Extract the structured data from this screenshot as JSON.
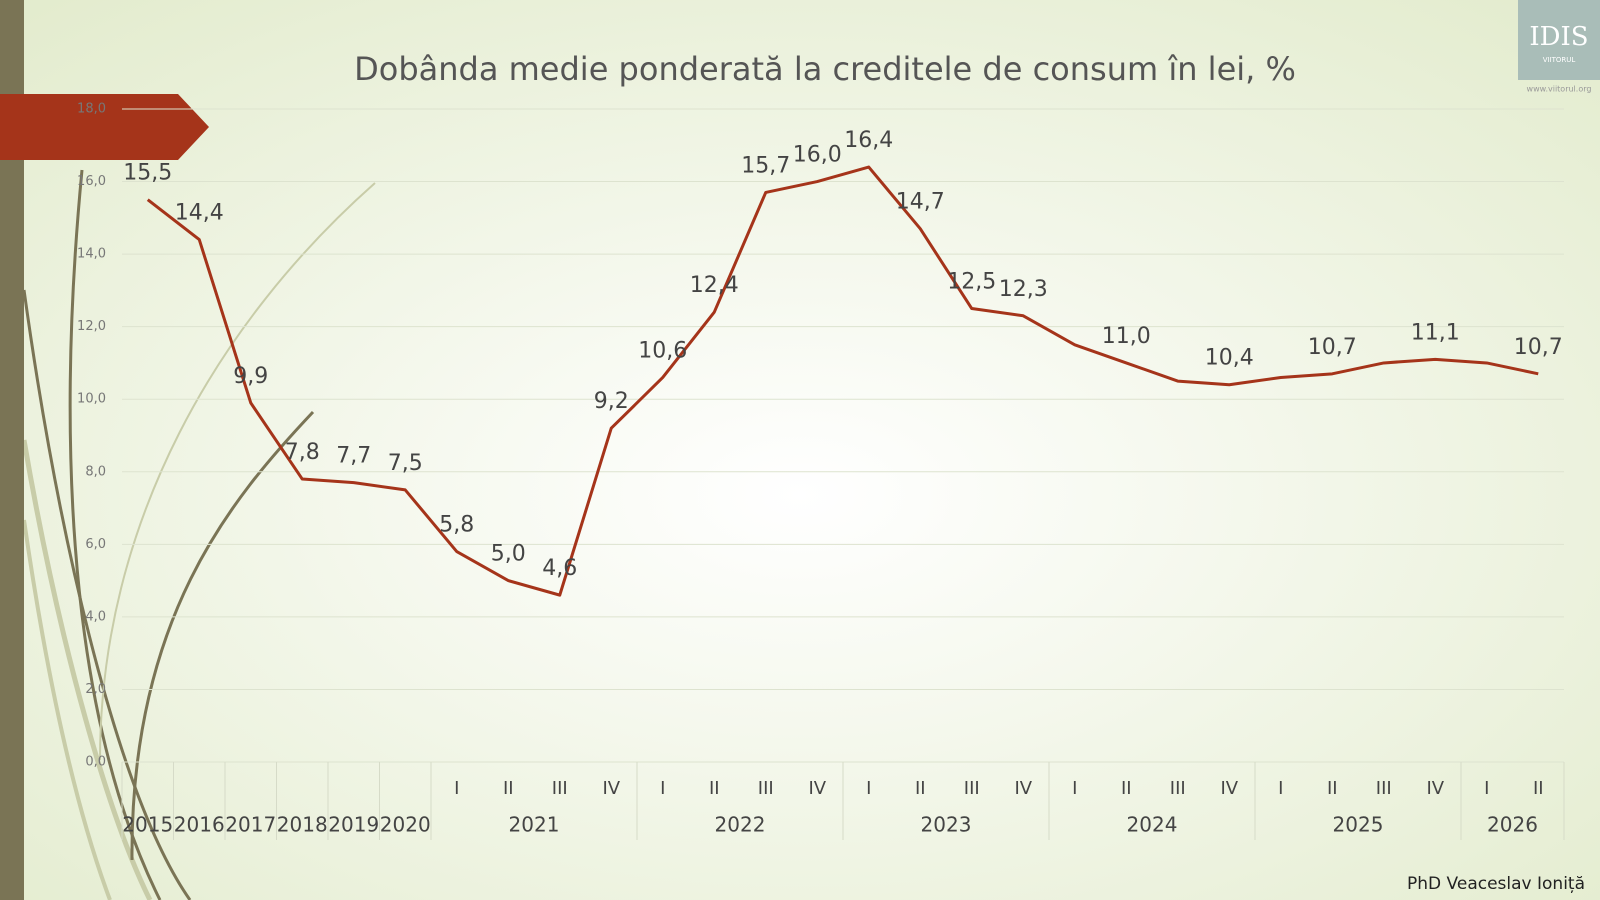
{
  "chart_data": {
    "type": "line",
    "title": "Dobânda medie ponderată la creditele de consum în lei, %",
    "x_axis": [
      {
        "label": "2015"
      },
      {
        "label": "2016"
      },
      {
        "label": "2017"
      },
      {
        "label": "2018"
      },
      {
        "label": "2019"
      },
      {
        "label": "2020"
      },
      {
        "label": "2021",
        "categories": [
          "I",
          "II",
          "III",
          "IV"
        ]
      },
      {
        "label": "2022",
        "categories": [
          "I",
          "II",
          "III",
          "IV"
        ]
      },
      {
        "label": "2023",
        "categories": [
          "I",
          "II",
          "III",
          "IV"
        ]
      },
      {
        "label": "2024",
        "categories": [
          "I",
          "II",
          "III",
          "IV"
        ]
      },
      {
        "label": "2025",
        "categories": [
          "I",
          "II",
          "III",
          "IV"
        ]
      },
      {
        "label": "2026",
        "categories": [
          "I",
          "II"
        ]
      }
    ],
    "series": [
      {
        "color": "#a5341a",
        "values": [
          15.5,
          14.4,
          9.9,
          7.8,
          7.7,
          7.5,
          5.8,
          5.0,
          4.6,
          9.2,
          10.6,
          12.4,
          15.7,
          16.0,
          16.4,
          14.7,
          12.5,
          12.3,
          11.5,
          11.0,
          10.5,
          10.4,
          10.6,
          10.7,
          11.0,
          11.1,
          11.0,
          10.7
        ],
        "value_labels": [
          "15,5",
          "14,4",
          "9,9",
          "7,8",
          "7,7",
          "7,5",
          "5,8",
          "5,0",
          "4,6",
          "9,2",
          "10,6",
          "12,4",
          "15,7",
          "16,0",
          "16,4",
          "14,7",
          "12,5",
          "12,3",
          null,
          "11,0",
          null,
          "10,4",
          null,
          "10,7",
          null,
          "11,1",
          null,
          "10,7"
        ]
      }
    ],
    "ylim": [
      0,
      18
    ],
    "yticks": [
      {
        "value": 0,
        "label": "0,0"
      },
      {
        "value": 2,
        "label": "2,0"
      },
      {
        "value": 4,
        "label": "4,0"
      },
      {
        "value": 6,
        "label": "6,0"
      },
      {
        "value": 8,
        "label": "8,0"
      },
      {
        "value": 10,
        "label": "10,0"
      },
      {
        "value": 12,
        "label": "12,0"
      },
      {
        "value": 14,
        "label": "14,0"
      },
      {
        "value": 16,
        "label": "16,0"
      },
      {
        "value": 18,
        "label": "18,0"
      }
    ],
    "grid": true
  },
  "author": "PhD Veaceslav Ioniță",
  "logo": {
    "name": "IDIS",
    "subtitle": "VIITORUL",
    "website": "www.viitorul.org"
  }
}
